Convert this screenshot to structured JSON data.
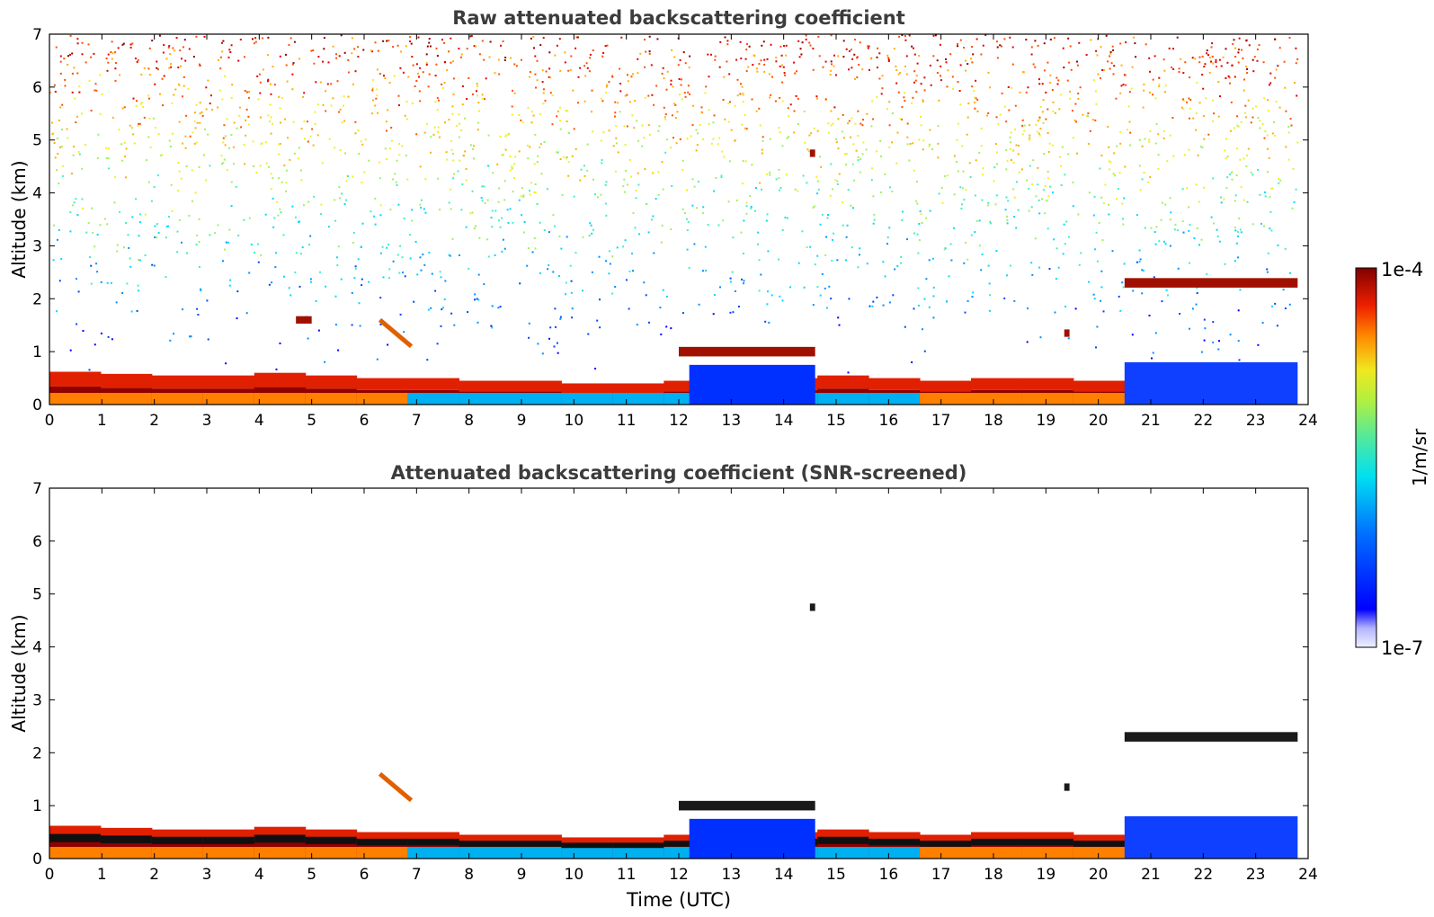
{
  "figure": {
    "xlabel": "Time (UTC)",
    "colorbar": {
      "label": "1/m/sr",
      "max_label": "1e-4",
      "min_label": "1e-7",
      "min_value": 1e-07,
      "max_value": 0.0001,
      "scale": "log"
    }
  },
  "chart_data": [
    {
      "type": "heatmap",
      "title": "Raw attenuated backscattering coefficient",
      "ylabel": "Altitude (km)",
      "xlabel": "",
      "xlim": [
        0,
        24
      ],
      "ylim": [
        0,
        7
      ],
      "xticks": [
        "0",
        "1",
        "2",
        "3",
        "4",
        "5",
        "6",
        "7",
        "8",
        "9",
        "10",
        "11",
        "12",
        "13",
        "14",
        "15",
        "16",
        "17",
        "18",
        "19",
        "20",
        "21",
        "22",
        "23",
        "24"
      ],
      "yticks": [
        "0",
        "1",
        "2",
        "3",
        "4",
        "5",
        "6",
        "7"
      ],
      "data_end_hour": 23.8,
      "background_noise": "speckle increasing with altitude, strongest above 5 km",
      "features": [
        {
          "kind": "boundary-layer",
          "hours": [
            0,
            20.5
          ],
          "top_km": [
            0.62,
            0.58,
            0.55,
            0.55,
            0.6,
            0.55,
            0.5,
            0.5,
            0.45,
            0.45,
            0.4,
            0.4,
            0.45,
            0.5,
            0.5,
            0.55,
            0.5,
            0.45,
            0.5,
            0.5,
            0.45
          ]
        },
        {
          "kind": "cloud-layer",
          "hours": [
            12.0,
            14.6
          ],
          "altitude_km": 1.0
        },
        {
          "kind": "cloud-layer",
          "hours": [
            20.5,
            23.8
          ],
          "altitude_km": 2.3
        },
        {
          "kind": "cloud",
          "hours": [
            14.5,
            14.6
          ],
          "altitude_km": 4.75
        },
        {
          "kind": "cloud",
          "hours": [
            19.35,
            19.45
          ],
          "altitude_km": 1.35
        },
        {
          "kind": "aerosol-plume",
          "hours": [
            6.3,
            6.9
          ],
          "altitude_km": [
            1.6,
            1.1
          ]
        },
        {
          "kind": "aerosol-plume",
          "hours": [
            4.7,
            5.0
          ],
          "altitude_km": 1.6
        }
      ]
    },
    {
      "type": "heatmap",
      "title": "Attenuated backscattering coefficient (SNR-screened)",
      "ylabel": "Altitude (km)",
      "xlabel": "Time (UTC)",
      "xlim": [
        0,
        24
      ],
      "ylim": [
        0,
        7
      ],
      "xticks": [
        "0",
        "1",
        "2",
        "3",
        "4",
        "5",
        "6",
        "7",
        "8",
        "9",
        "10",
        "11",
        "12",
        "13",
        "14",
        "15",
        "16",
        "17",
        "18",
        "19",
        "20",
        "21",
        "22",
        "23",
        "24"
      ],
      "yticks": [
        "0",
        "1",
        "2",
        "3",
        "4",
        "5",
        "6",
        "7"
      ],
      "data_end_hour": 23.8,
      "background_noise": "removed (screened)",
      "features": [
        {
          "kind": "boundary-layer",
          "hours": [
            0,
            20.5
          ],
          "top_km": [
            0.62,
            0.58,
            0.55,
            0.55,
            0.6,
            0.55,
            0.5,
            0.5,
            0.45,
            0.45,
            0.4,
            0.4,
            0.45,
            0.5,
            0.5,
            0.55,
            0.5,
            0.45,
            0.5,
            0.5,
            0.45
          ]
        },
        {
          "kind": "cloud-layer",
          "hours": [
            12.0,
            14.6
          ],
          "altitude_km": 1.0
        },
        {
          "kind": "cloud-layer",
          "hours": [
            20.5,
            23.8
          ],
          "altitude_km": 2.3
        },
        {
          "kind": "cloud",
          "hours": [
            14.5,
            14.6
          ],
          "altitude_km": 4.75
        },
        {
          "kind": "cloud",
          "hours": [
            19.35,
            19.45
          ],
          "altitude_km": 1.35
        },
        {
          "kind": "aerosol-plume",
          "hours": [
            6.3,
            6.9
          ],
          "altitude_km": [
            1.6,
            1.1
          ]
        }
      ]
    }
  ]
}
